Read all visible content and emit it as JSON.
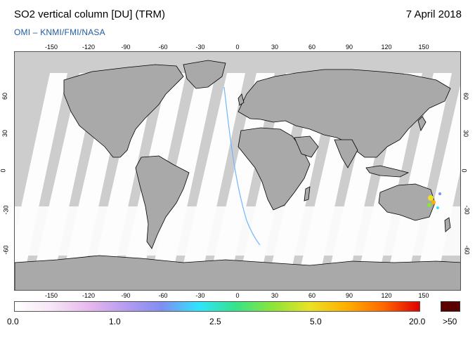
{
  "header": {
    "title": "SO2 vertical column [DU] (TRM)",
    "date": "7 April 2018",
    "source": "OMI  –  KNMI/FMI/NASA"
  },
  "map": {
    "lon_ticks": [
      "-150",
      "-120",
      "-90",
      "-60",
      "-30",
      "0",
      "30",
      "60",
      "90",
      "120",
      "150"
    ],
    "lat_ticks": [
      "60",
      "30",
      "0",
      "-30",
      "-60"
    ],
    "background_color": "#cdcdcd",
    "land_color": "#a8a8a8",
    "swath_color": "#ffffff"
  },
  "colorbar": {
    "labels": [
      "0.0",
      "1.0",
      "2.5",
      "5.0",
      "20.0"
    ],
    "over_label": ">50",
    "gradient_colors": [
      "#ffffff",
      "#f6e6f6",
      "#e8b8ee",
      "#b79cf0",
      "#7f8ef0",
      "#2fe4ff",
      "#35e38a",
      "#8be53a",
      "#e9e227",
      "#ffb000",
      "#ff6a00",
      "#e00000"
    ],
    "over_color": "#5a0000"
  }
}
